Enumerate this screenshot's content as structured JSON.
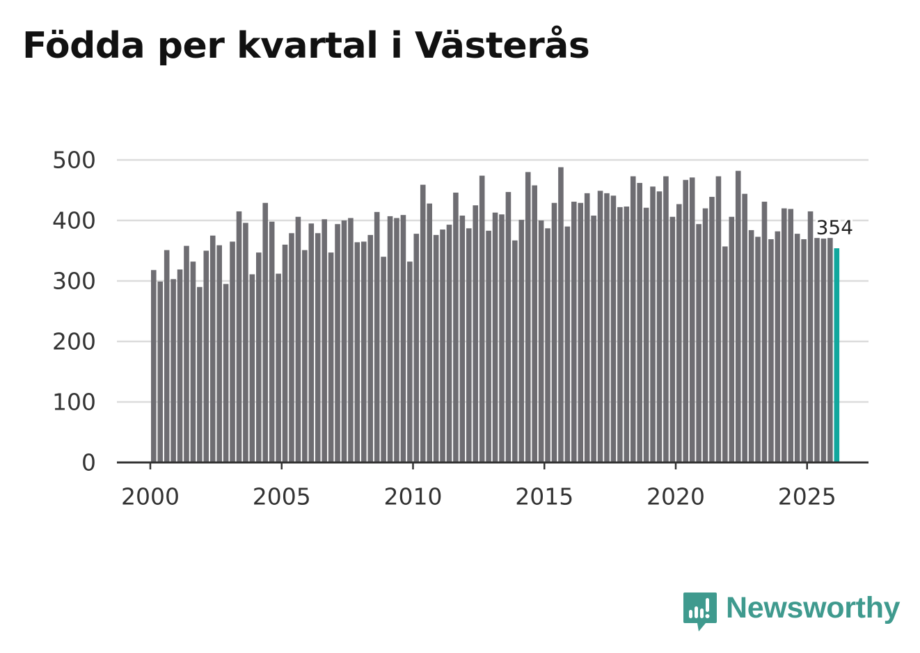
{
  "title": "Födda per kvartal i Västerås",
  "brand": {
    "name": "Newsworthy",
    "color": "#3f9a8e"
  },
  "colors": {
    "bar": "#6e6d72",
    "highlight": "#11a79d",
    "grid": "#dcdcdc",
    "axis": "#333333"
  },
  "chart_data": {
    "type": "bar",
    "title": "Födda per kvartal i Västerås",
    "xlabel": "",
    "ylabel": "",
    "ylim": [
      0,
      500
    ],
    "yticks": [
      "0",
      "100",
      "200",
      "300",
      "400",
      "500"
    ],
    "xticks": [
      "2000",
      "2005",
      "2010",
      "2015",
      "2020",
      "2025"
    ],
    "grid": true,
    "start_year": 2000,
    "periods_per_year": 4,
    "series": [
      {
        "name": "Födda",
        "values": [
          318,
          299,
          351,
          303,
          319,
          358,
          332,
          290,
          350,
          375,
          359,
          295,
          365,
          415,
          396,
          311,
          347,
          429,
          398,
          312,
          360,
          379,
          406,
          351,
          395,
          379,
          402,
          347,
          394,
          400,
          404,
          364,
          365,
          376,
          414,
          340,
          407,
          404,
          409,
          332,
          378,
          459,
          428,
          376,
          385,
          393,
          446,
          408,
          387,
          425,
          474,
          383,
          413,
          410,
          447,
          367,
          401,
          480,
          458,
          400,
          387,
          429,
          488,
          390,
          431,
          429,
          445,
          408,
          449,
          445,
          441,
          422,
          423,
          473,
          462,
          421,
          456,
          448,
          473,
          406,
          427,
          467,
          471,
          394,
          420,
          439,
          473,
          357,
          406,
          482,
          444,
          384,
          373,
          431,
          369,
          382,
          420,
          419,
          378,
          369,
          415,
          371,
          370,
          371,
          354
        ]
      }
    ],
    "highlight_label": "354"
  }
}
